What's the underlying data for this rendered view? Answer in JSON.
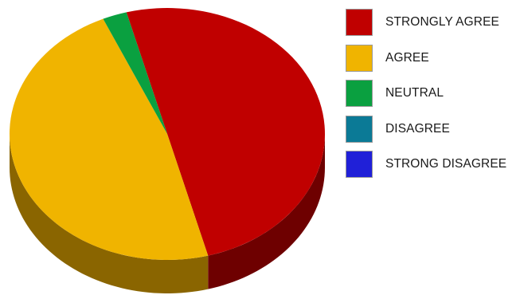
{
  "chart_data": {
    "type": "pie",
    "style": "3d",
    "title": "",
    "categories": [
      "STRONGLY AGREE",
      "AGREE",
      "NEUTRAL",
      "DISAGREE",
      "STRONG DISAGREE"
    ],
    "values": [
      50,
      47.5,
      2.5,
      0,
      0
    ],
    "unit": "percent",
    "colors": [
      "#c00000",
      "#f0b400",
      "#0aa040",
      "#0b7a96",
      "#2020d8"
    ],
    "side_colors": [
      "#6e0000",
      "#8a6500",
      "#055a22",
      "#064658",
      "#11117a"
    ],
    "legend_position": "right"
  }
}
